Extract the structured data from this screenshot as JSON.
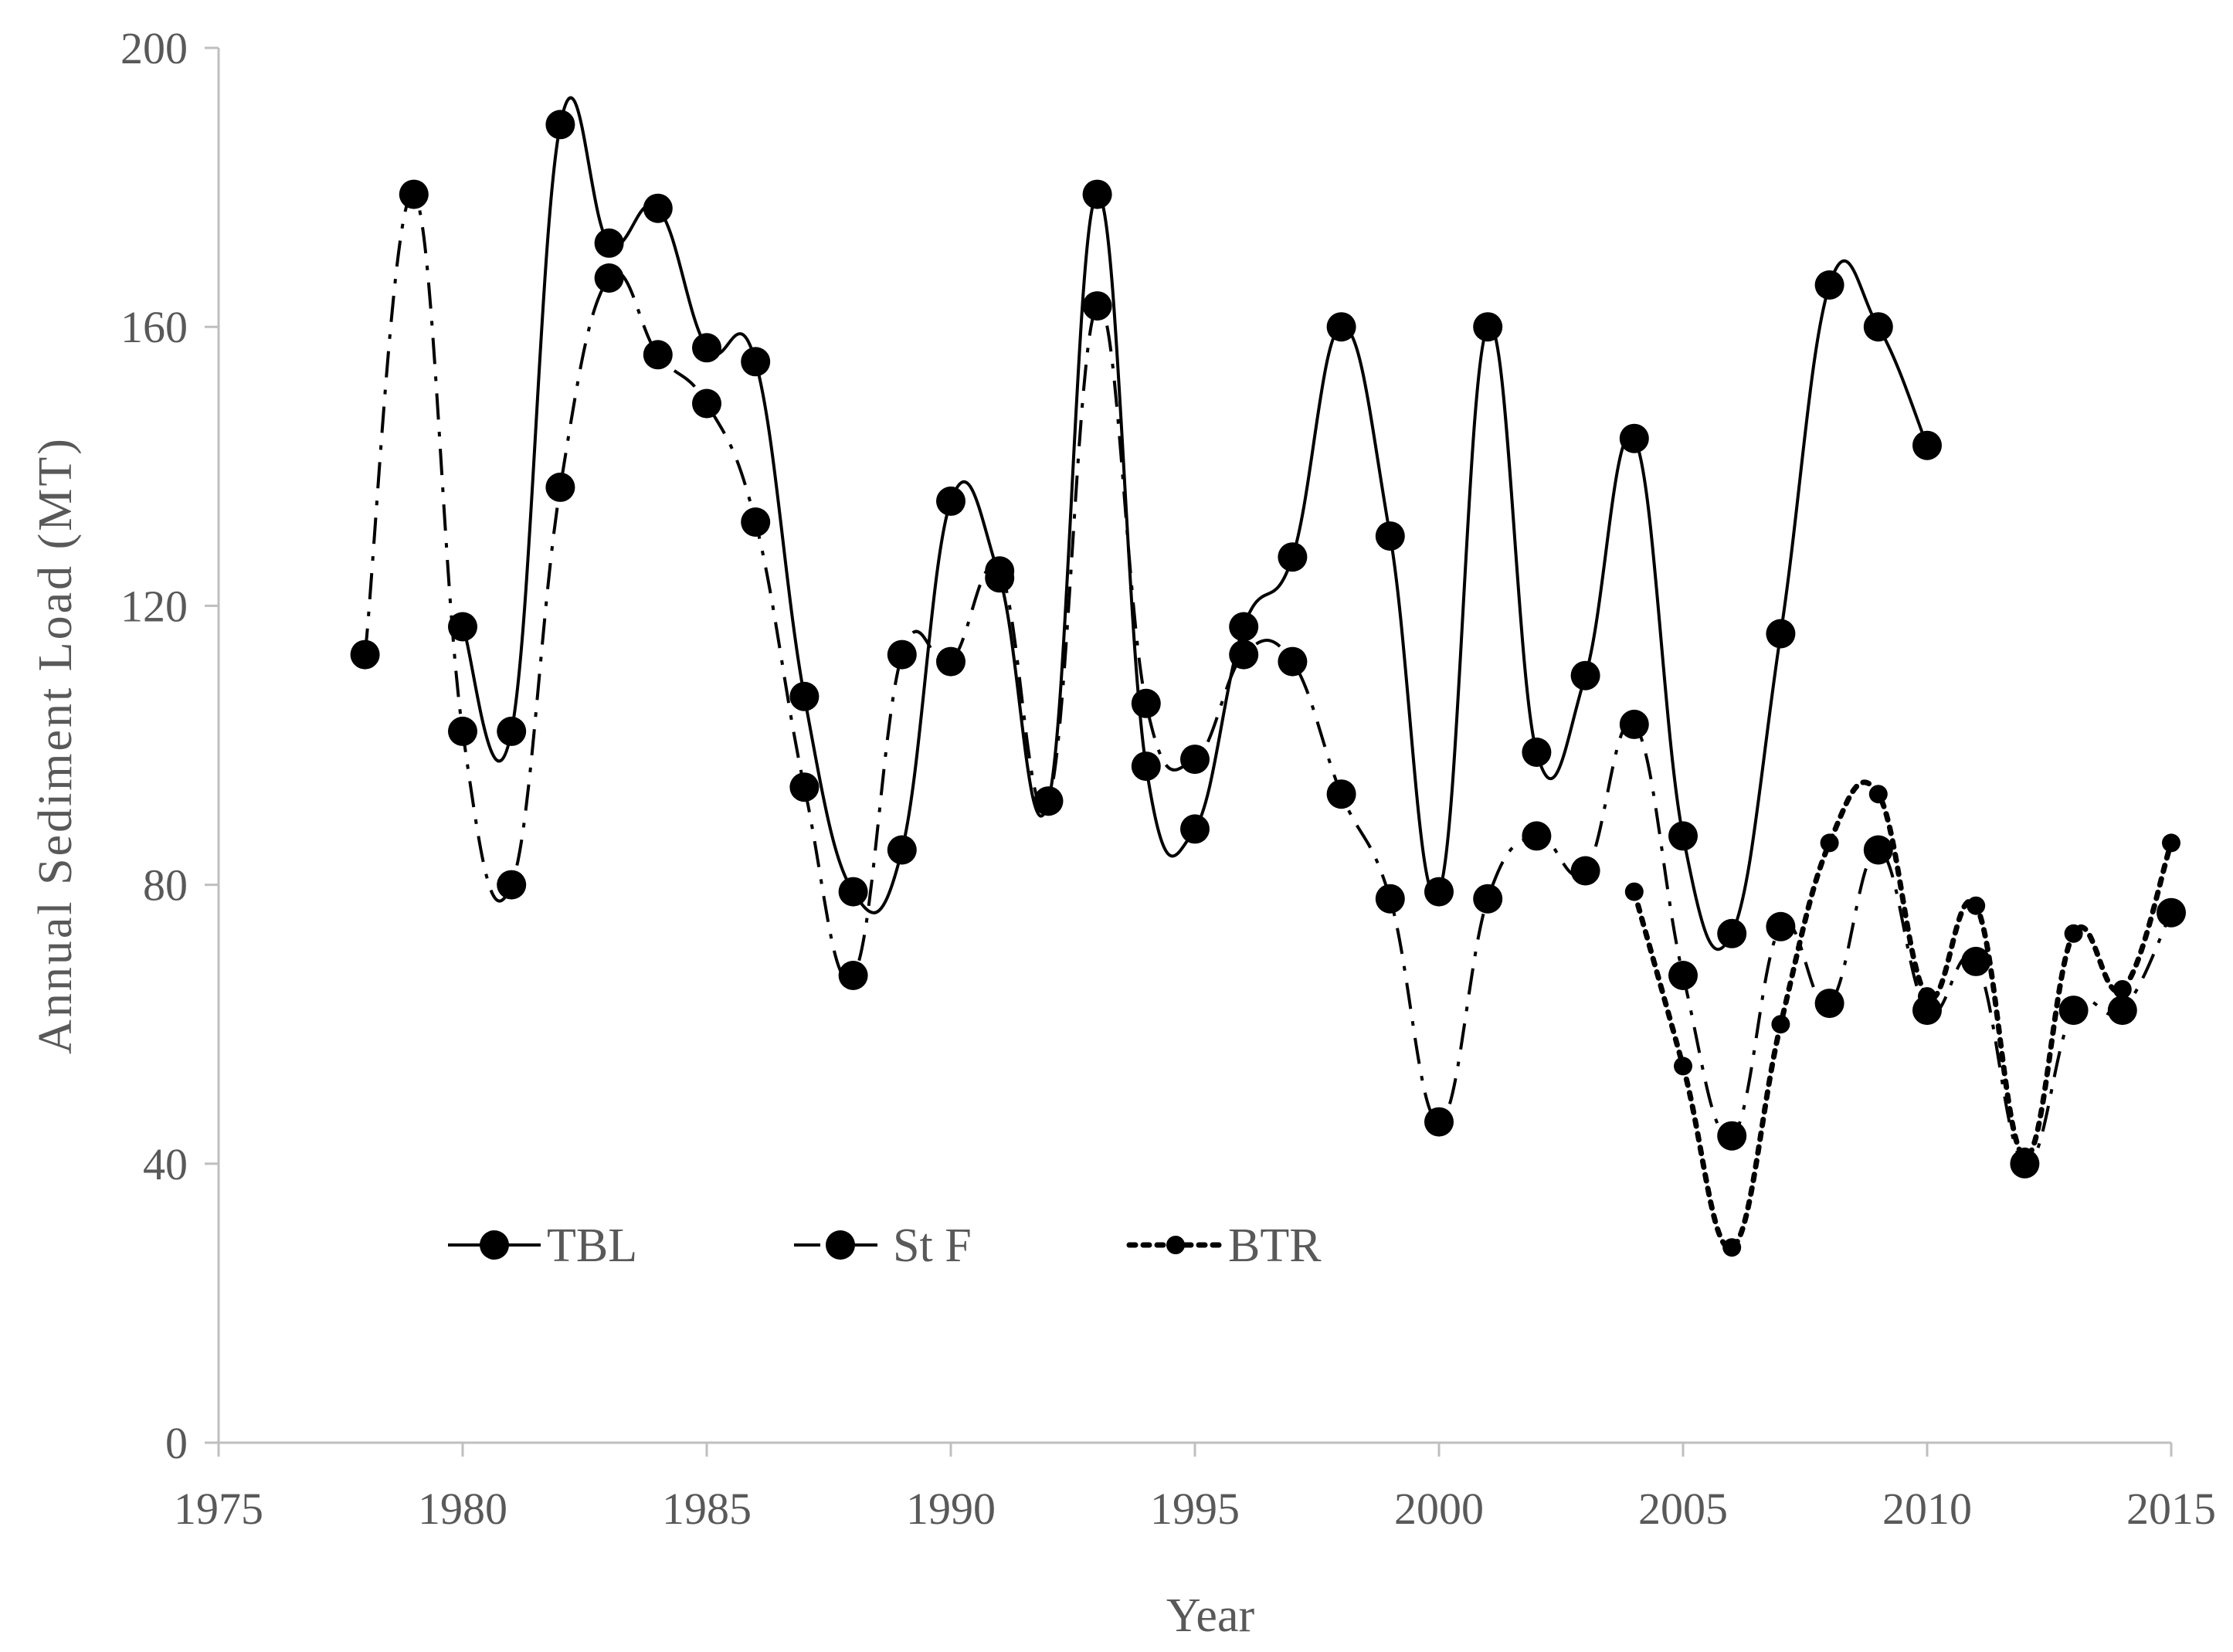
{
  "chart_data": {
    "type": "line",
    "title": "",
    "xlabel": "Year",
    "ylabel": "Annual Sediment Load (MT)",
    "xlim": [
      1975,
      2015
    ],
    "ylim": [
      0,
      200
    ],
    "xticks": [
      1975,
      1980,
      1985,
      1990,
      1995,
      2000,
      2005,
      2010,
      2015
    ],
    "yticks": [
      0,
      40,
      80,
      120,
      160,
      200
    ],
    "grid": false,
    "legend_position": "bottom-left inside plot",
    "series": [
      {
        "name": "TBL",
        "line_style": "solid",
        "marker": "large",
        "color": "#000000",
        "x": [
          1980,
          1981,
          1982,
          1983,
          1984,
          1985,
          1986,
          1987,
          1988,
          1989,
          1990,
          1991,
          1992,
          1993,
          1994,
          1995,
          1996,
          1997,
          1998,
          1999,
          2000,
          2001,
          2002,
          2003,
          2004,
          2005,
          2006,
          2007,
          2008,
          2009,
          2010
        ],
        "y": [
          117,
          102,
          189,
          172,
          177,
          157,
          155,
          107,
          79,
          85,
          135,
          124,
          92,
          179,
          97,
          88,
          117,
          127,
          160,
          130,
          79,
          160,
          99,
          110,
          144,
          87,
          73,
          116,
          166,
          160,
          143
        ]
      },
      {
        "name": "St F",
        "line_style": "dash-dot",
        "marker": "large",
        "color": "#000000",
        "x": [
          1978,
          1979,
          1980,
          1981,
          1982,
          1983,
          1984,
          1985,
          1986,
          1987,
          1988,
          1989,
          1990,
          1991,
          1992,
          1993,
          1994,
          1995,
          1996,
          1997,
          1998,
          1999,
          2000,
          2001,
          2002,
          2003,
          2004,
          2005,
          2006,
          2007,
          2008,
          2009,
          2010,
          2011,
          2012,
          2013,
          2014,
          2015
        ],
        "y": [
          113,
          179,
          102,
          80,
          137,
          167,
          156,
          149,
          132,
          94,
          67,
          113,
          112,
          125,
          92,
          163,
          106,
          98,
          113,
          112,
          93,
          78,
          46,
          78,
          87,
          82,
          103,
          67,
          44,
          74,
          63,
          85,
          62,
          69,
          40,
          62,
          62,
          76
        ]
      },
      {
        "name": "BTR",
        "line_style": "dotted",
        "marker": "small",
        "color": "#000000",
        "x": [
          2004,
          2005,
          2006,
          2007,
          2008,
          2009,
          2010,
          2011,
          2012,
          2013,
          2014,
          2015
        ],
        "y": [
          79,
          54,
          28,
          60,
          86,
          93,
          64,
          77,
          41,
          73,
          65,
          86
        ]
      }
    ]
  }
}
